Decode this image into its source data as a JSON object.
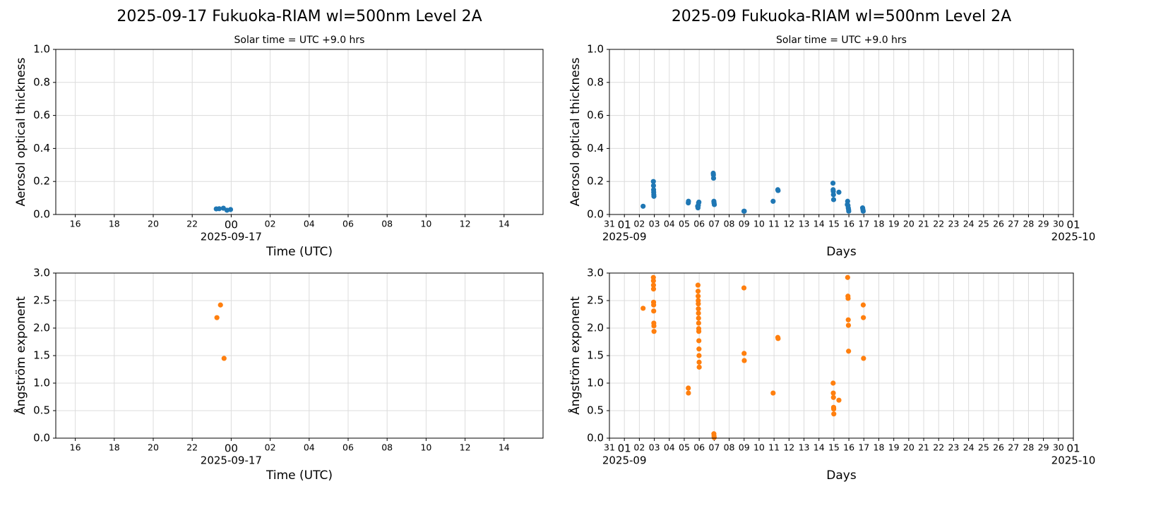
{
  "chart_data": [
    {
      "type": "scatter",
      "title": "2025-09-17  Fukuoka-RIAM  wl=500nm  Level 2A",
      "subtitle": "Solar time = UTC +9.0 hrs",
      "y_label": "Aerosol optical thickness",
      "x_label": "Time (UTC)",
      "x_date_labels": [
        {
          "value": "2025-09-17T00:00",
          "label": "2025-09-17"
        }
      ],
      "xlim": [
        "2025-09-16T15:00",
        "2025-09-17T16:00"
      ],
      "xticks": [
        {
          "value": "2025-09-16T16:00",
          "label": "16"
        },
        {
          "value": "2025-09-16T18:00",
          "label": "18"
        },
        {
          "value": "2025-09-16T20:00",
          "label": "20"
        },
        {
          "value": "2025-09-16T22:00",
          "label": "22"
        },
        {
          "value": "2025-09-17T00:00",
          "label": "00"
        },
        {
          "value": "2025-09-17T02:00",
          "label": "02"
        },
        {
          "value": "2025-09-17T04:00",
          "label": "04"
        },
        {
          "value": "2025-09-17T06:00",
          "label": "06"
        },
        {
          "value": "2025-09-17T08:00",
          "label": "08"
        },
        {
          "value": "2025-09-17T10:00",
          "label": "10"
        },
        {
          "value": "2025-09-17T12:00",
          "label": "12"
        },
        {
          "value": "2025-09-17T14:00",
          "label": "14"
        }
      ],
      "ylim": [
        0,
        1
      ],
      "yticks": [
        {
          "value": 0,
          "label": "0.0"
        },
        0.2,
        0.4,
        0.6,
        0.8,
        {
          "value": 1,
          "label": "1.0"
        }
      ],
      "grid": true,
      "series": [
        {
          "color": "#1f77b4",
          "x": [
            "2025-09-16T23:14",
            "2025-09-16T23:23",
            "2025-09-16T23:36",
            "2025-09-16T23:47",
            "2025-09-16T23:58"
          ],
          "values": [
            0.034,
            0.035,
            0.038,
            0.026,
            0.03
          ]
        }
      ]
    },
    {
      "type": "scatter",
      "title": "2025-09  Fukuoka-RIAM  wl=500nm  Level 2A",
      "subtitle": "Solar time = UTC +9.0 hrs",
      "y_label": "Aerosol optical thickness",
      "x_label": "Days",
      "x_date_labels": [
        {
          "value": "2025-09-01T00:00",
          "label": "2025-09"
        },
        {
          "value": "2025-10-01T00:00",
          "label": "2025-10"
        }
      ],
      "xlim": [
        "2025-08-31T00:00",
        "2025-10-01T00:00"
      ],
      "xticks": [
        {
          "value": "2025-08-31T00:00",
          "label": "31"
        },
        {
          "value": "2025-09-01T00:00",
          "label": "01"
        },
        {
          "value": "2025-09-02T00:00",
          "label": "02"
        },
        {
          "value": "2025-09-03T00:00",
          "label": "03"
        },
        {
          "value": "2025-09-04T00:00",
          "label": "04"
        },
        {
          "value": "2025-09-05T00:00",
          "label": "05"
        },
        {
          "value": "2025-09-06T00:00",
          "label": "06"
        },
        {
          "value": "2025-09-07T00:00",
          "label": "07"
        },
        {
          "value": "2025-09-08T00:00",
          "label": "08"
        },
        {
          "value": "2025-09-09T00:00",
          "label": "09"
        },
        {
          "value": "2025-09-10T00:00",
          "label": "10"
        },
        {
          "value": "2025-09-11T00:00",
          "label": "11"
        },
        {
          "value": "2025-09-12T00:00",
          "label": "12"
        },
        {
          "value": "2025-09-13T00:00",
          "label": "13"
        },
        {
          "value": "2025-09-14T00:00",
          "label": "14"
        },
        {
          "value": "2025-09-15T00:00",
          "label": "15"
        },
        {
          "value": "2025-09-16T00:00",
          "label": "16"
        },
        {
          "value": "2025-09-17T00:00",
          "label": "17"
        },
        {
          "value": "2025-09-18T00:00",
          "label": "18"
        },
        {
          "value": "2025-09-19T00:00",
          "label": "19"
        },
        {
          "value": "2025-09-20T00:00",
          "label": "20"
        },
        {
          "value": "2025-09-21T00:00",
          "label": "21"
        },
        {
          "value": "2025-09-22T00:00",
          "label": "22"
        },
        {
          "value": "2025-09-23T00:00",
          "label": "23"
        },
        {
          "value": "2025-09-24T00:00",
          "label": "24"
        },
        {
          "value": "2025-09-25T00:00",
          "label": "25"
        },
        {
          "value": "2025-09-26T00:00",
          "label": "26"
        },
        {
          "value": "2025-09-27T00:00",
          "label": "27"
        },
        {
          "value": "2025-09-28T00:00",
          "label": "28"
        },
        {
          "value": "2025-09-29T00:00",
          "label": "29"
        },
        {
          "value": "2025-09-30T00:00",
          "label": "30"
        },
        {
          "value": "2025-10-01T00:00",
          "label": "01"
        }
      ],
      "ylim": [
        0,
        1
      ],
      "yticks": [
        {
          "value": 0,
          "label": "0.0"
        },
        0.2,
        0.4,
        0.6,
        0.8,
        {
          "value": 1,
          "label": "1.0"
        }
      ],
      "grid": true,
      "series": [
        {
          "color": "#1f77b4",
          "x": [
            "2025-09-02T06:00",
            "2025-09-02T22:30",
            "2025-09-02T22:40",
            "2025-09-02T22:50",
            "2025-09-02T23:00",
            "2025-09-02T23:10",
            "2025-09-02T23:20",
            "2025-09-05T06:30",
            "2025-09-05T06:45",
            "2025-09-05T21:30",
            "2025-09-05T22:00",
            "2025-09-05T22:30",
            "2025-09-05T23:00",
            "2025-09-05T23:30",
            "2025-09-06T22:30",
            "2025-09-06T22:45",
            "2025-09-06T23:00",
            "2025-09-06T23:30",
            "2025-09-06T23:45",
            "2025-09-07T00:15",
            "2025-09-08T23:45",
            "2025-09-09T00:15",
            "2025-09-10T22:30",
            "2025-09-11T06:00",
            "2025-09-11T06:30",
            "2025-09-14T22:30",
            "2025-09-14T22:45",
            "2025-09-14T23:00",
            "2025-09-14T23:15",
            "2025-09-14T23:30",
            "2025-09-15T08:00",
            "2025-09-15T21:30",
            "2025-09-15T22:00",
            "2025-09-15T22:30",
            "2025-09-15T23:00",
            "2025-09-15T23:30",
            "2025-09-15T23:45",
            "2025-09-16T22:00",
            "2025-09-16T22:30",
            "2025-09-16T23:00"
          ],
          "values": [
            0.05,
            0.2,
            0.175,
            0.15,
            0.135,
            0.12,
            0.11,
            0.07,
            0.08,
            0.05,
            0.04,
            0.055,
            0.07,
            0.075,
            0.25,
            0.24,
            0.22,
            0.08,
            0.07,
            0.06,
            0.02,
            0.02,
            0.08,
            0.15,
            0.145,
            0.19,
            0.15,
            0.14,
            0.12,
            0.09,
            0.135,
            0.06,
            0.08,
            0.055,
            0.04,
            0.03,
            0.02,
            0.04,
            0.03,
            0.02
          ]
        }
      ]
    },
    {
      "type": "scatter",
      "y_label": "Ångström exponent",
      "x_label": "Time (UTC)",
      "x_date_labels": [
        {
          "value": "2025-09-17T00:00",
          "label": "2025-09-17"
        }
      ],
      "xlim": [
        "2025-09-16T15:00",
        "2025-09-17T16:00"
      ],
      "xticks": [
        {
          "value": "2025-09-16T16:00",
          "label": "16"
        },
        {
          "value": "2025-09-16T18:00",
          "label": "18"
        },
        {
          "value": "2025-09-16T20:00",
          "label": "20"
        },
        {
          "value": "2025-09-16T22:00",
          "label": "22"
        },
        {
          "value": "2025-09-17T00:00",
          "label": "00"
        },
        {
          "value": "2025-09-17T02:00",
          "label": "02"
        },
        {
          "value": "2025-09-17T04:00",
          "label": "04"
        },
        {
          "value": "2025-09-17T06:00",
          "label": "06"
        },
        {
          "value": "2025-09-17T08:00",
          "label": "08"
        },
        {
          "value": "2025-09-17T10:00",
          "label": "10"
        },
        {
          "value": "2025-09-17T12:00",
          "label": "12"
        },
        {
          "value": "2025-09-17T14:00",
          "label": "14"
        }
      ],
      "ylim": [
        0,
        3
      ],
      "yticks": [
        {
          "value": 0,
          "label": "0.0"
        },
        0.5,
        {
          "value": 1,
          "label": "1.0"
        },
        1.5,
        {
          "value": 2,
          "label": "2.0"
        },
        2.5,
        {
          "value": 3,
          "label": "3.0"
        }
      ],
      "grid": true,
      "series": [
        {
          "color": "#ff7f0e",
          "x": [
            "2025-09-16T23:16",
            "2025-09-16T23:27",
            "2025-09-16T23:38"
          ],
          "values": [
            2.19,
            2.42,
            1.45
          ]
        }
      ]
    },
    {
      "type": "scatter",
      "y_label": "Ångström exponent",
      "x_label": "Days",
      "x_date_labels": [
        {
          "value": "2025-09-01T00:00",
          "label": "2025-09"
        },
        {
          "value": "2025-10-01T00:00",
          "label": "2025-10"
        }
      ],
      "xlim": [
        "2025-08-31T00:00",
        "2025-10-01T00:00"
      ],
      "xticks": [
        {
          "value": "2025-08-31T00:00",
          "label": "31"
        },
        {
          "value": "2025-09-01T00:00",
          "label": "01"
        },
        {
          "value": "2025-09-02T00:00",
          "label": "02"
        },
        {
          "value": "2025-09-03T00:00",
          "label": "03"
        },
        {
          "value": "2025-09-04T00:00",
          "label": "04"
        },
        {
          "value": "2025-09-05T00:00",
          "label": "05"
        },
        {
          "value": "2025-09-06T00:00",
          "label": "06"
        },
        {
          "value": "2025-09-07T00:00",
          "label": "07"
        },
        {
          "value": "2025-09-08T00:00",
          "label": "08"
        },
        {
          "value": "2025-09-09T00:00",
          "label": "09"
        },
        {
          "value": "2025-09-10T00:00",
          "label": "10"
        },
        {
          "value": "2025-09-11T00:00",
          "label": "11"
        },
        {
          "value": "2025-09-12T00:00",
          "label": "12"
        },
        {
          "value": "2025-09-13T00:00",
          "label": "13"
        },
        {
          "value": "2025-09-14T00:00",
          "label": "14"
        },
        {
          "value": "2025-09-15T00:00",
          "label": "15"
        },
        {
          "value": "2025-09-16T00:00",
          "label": "16"
        },
        {
          "value": "2025-09-17T00:00",
          "label": "17"
        },
        {
          "value": "2025-09-18T00:00",
          "label": "18"
        },
        {
          "value": "2025-09-19T00:00",
          "label": "19"
        },
        {
          "value": "2025-09-20T00:00",
          "label": "20"
        },
        {
          "value": "2025-09-21T00:00",
          "label": "21"
        },
        {
          "value": "2025-09-22T00:00",
          "label": "22"
        },
        {
          "value": "2025-09-23T00:00",
          "label": "23"
        },
        {
          "value": "2025-09-24T00:00",
          "label": "24"
        },
        {
          "value": "2025-09-25T00:00",
          "label": "25"
        },
        {
          "value": "2025-09-26T00:00",
          "label": "26"
        },
        {
          "value": "2025-09-27T00:00",
          "label": "27"
        },
        {
          "value": "2025-09-28T00:00",
          "label": "28"
        },
        {
          "value": "2025-09-29T00:00",
          "label": "29"
        },
        {
          "value": "2025-09-30T00:00",
          "label": "30"
        },
        {
          "value": "2025-10-01T00:00",
          "label": "01"
        }
      ],
      "ylim": [
        0,
        3
      ],
      "yticks": [
        {
          "value": 0,
          "label": "0.0"
        },
        0.5,
        {
          "value": 1,
          "label": "1.0"
        },
        1.5,
        {
          "value": 2,
          "label": "2.0"
        },
        2.5,
        {
          "value": 3,
          "label": "3.0"
        }
      ],
      "grid": true,
      "series": [
        {
          "color": "#ff7f0e",
          "x": [
            "2025-09-02T06:00",
            "2025-09-02T22:30",
            "2025-09-02T22:35",
            "2025-09-02T22:40",
            "2025-09-02T22:45",
            "2025-09-02T22:50",
            "2025-09-02T22:55",
            "2025-09-02T23:00",
            "2025-09-02T23:10",
            "2025-09-02T23:20",
            "2025-09-02T23:30",
            "2025-09-05T06:30",
            "2025-09-05T06:45",
            "2025-09-05T22:00",
            "2025-09-05T22:08",
            "2025-09-05T22:16",
            "2025-09-05T22:24",
            "2025-09-05T22:32",
            "2025-09-05T22:40",
            "2025-09-05T22:48",
            "2025-09-05T22:56",
            "2025-09-05T23:04",
            "2025-09-05T23:12",
            "2025-09-05T23:20",
            "2025-09-05T23:28",
            "2025-09-05T23:36",
            "2025-09-05T23:44",
            "2025-09-05T23:52",
            "2025-09-05T23:59",
            "2025-09-06T23:30",
            "2025-09-06T23:45",
            "2025-09-07T00:00",
            "2025-09-08T23:45",
            "2025-09-09T00:00",
            "2025-09-09T00:15",
            "2025-09-10T22:30",
            "2025-09-11T06:00",
            "2025-09-11T06:30",
            "2025-09-14T22:45",
            "2025-09-14T23:00",
            "2025-09-14T23:15",
            "2025-09-14T23:30",
            "2025-09-14T23:40",
            "2025-09-14T23:50",
            "2025-09-15T08:00",
            "2025-09-15T22:00",
            "2025-09-15T22:30",
            "2025-09-15T22:45",
            "2025-09-15T23:00",
            "2025-09-15T23:15",
            "2025-09-15T23:30",
            "2025-09-16T23:00",
            "2025-09-16T23:15",
            "2025-09-16T23:30"
          ],
          "values": [
            2.36,
            2.92,
            2.86,
            2.78,
            2.71,
            2.47,
            2.42,
            2.31,
            2.09,
            2.04,
            1.94,
            0.91,
            0.82,
            2.78,
            2.67,
            2.58,
            2.5,
            2.44,
            2.35,
            2.27,
            2.18,
            2.09,
            1.99,
            1.94,
            1.77,
            1.62,
            1.5,
            1.38,
            1.29,
            0.08,
            0.04,
            0.01,
            2.73,
            1.54,
            1.41,
            0.82,
            1.83,
            1.81,
            1.0,
            0.82,
            0.74,
            0.56,
            0.53,
            0.44,
            0.69,
            2.92,
            2.58,
            2.54,
            2.15,
            2.05,
            1.58,
            2.42,
            2.19,
            1.45
          ]
        }
      ]
    }
  ]
}
